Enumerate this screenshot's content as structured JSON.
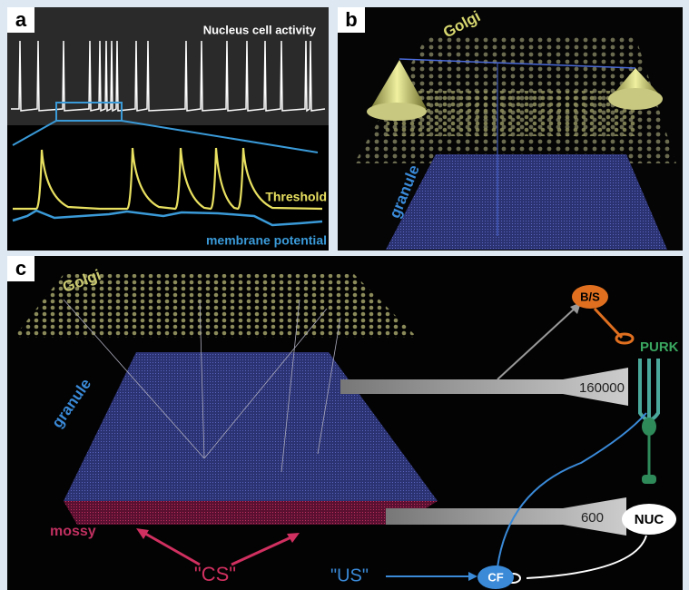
{
  "panels": {
    "a": {
      "label": "a",
      "title": "Nucleus cell activity",
      "threshold": "Threshold",
      "membrane": "membrane potential"
    },
    "b": {
      "label": "b",
      "golgi": "Golgi",
      "granule": "granule"
    },
    "c": {
      "label": "c",
      "golgi": "Golgi",
      "granule": "granule",
      "mossy": "mossy",
      "cs": "\"CS\"",
      "us": "\"US\"",
      "cf": "CF",
      "nuc": "NUC",
      "bs": "B/S",
      "purk": "PURK",
      "granule_count": 160000,
      "mossy_count": 600
    }
  }
}
